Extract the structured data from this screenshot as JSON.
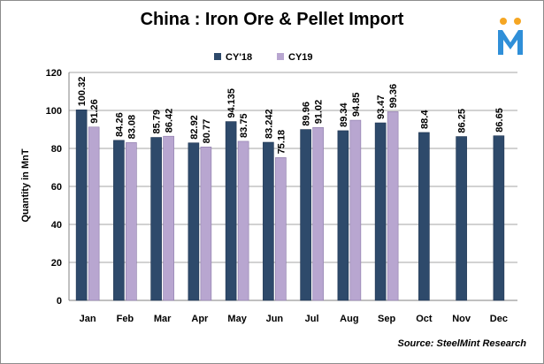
{
  "title": "China : Iron Ore & Pellet Import",
  "source": "Source: SteelMint Research",
  "logo": {
    "icon": "steelmint-logo-icon",
    "colors": [
      "#f5a623",
      "#2f8fd8"
    ]
  },
  "chart_data": {
    "type": "bar",
    "title": "China : Iron Ore & Pellet Import",
    "xlabel": "",
    "ylabel": "Quantity in MnT",
    "ylim": [
      0,
      120
    ],
    "yticks": [
      "0",
      "20",
      "40",
      "60",
      "80",
      "100",
      "120"
    ],
    "grid": true,
    "legend_position": "top-center",
    "categories": [
      "Jan",
      "Feb",
      "Mar",
      "Apr",
      "May",
      "Jun",
      "Jul",
      "Aug",
      "Sep",
      "Oct",
      "Nov",
      "Dec"
    ],
    "series": [
      {
        "name": "CY'18",
        "color": "#2e4a6b",
        "values": [
          100.32,
          84.26,
          85.79,
          82.92,
          94.135,
          83.242,
          89.96,
          89.34,
          93.47,
          88.4,
          86.25,
          86.65
        ],
        "labels": [
          "100.32",
          "84.26",
          "85.79",
          "82.92",
          "94.135",
          "83.242",
          "89.96",
          "89.34",
          "93.47",
          "88.4",
          "86.25",
          "86.65"
        ]
      },
      {
        "name": "CY19",
        "color": "#b8a6d0",
        "values": [
          91.26,
          83.08,
          86.42,
          80.77,
          83.75,
          75.18,
          91.02,
          94.85,
          99.36,
          null,
          null,
          null
        ],
        "labels": [
          "91.26",
          "83.08",
          "86.42",
          "80.77",
          "83.75",
          "75.18",
          "91.02",
          "94.85",
          "99.36",
          "",
          "",
          ""
        ]
      }
    ]
  }
}
